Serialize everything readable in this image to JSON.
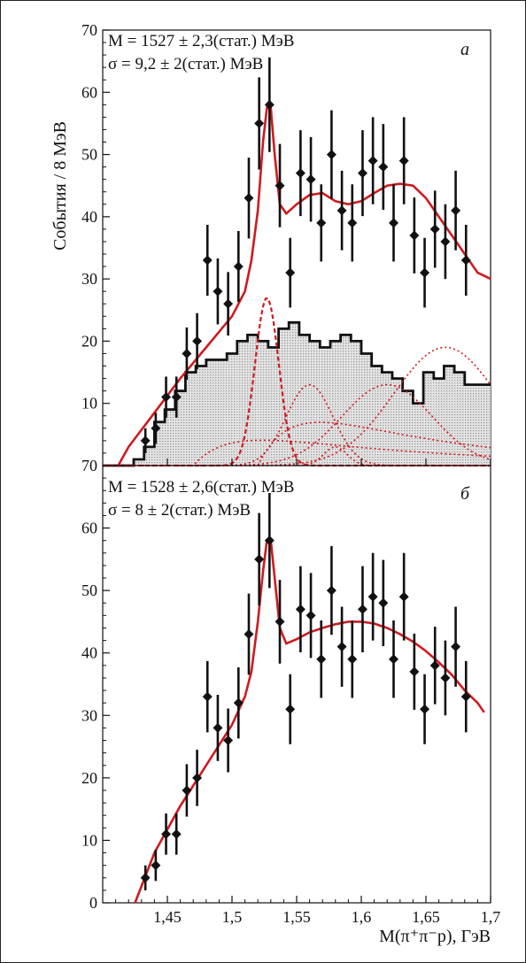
{
  "figure": {
    "ylabel": "События / 8 МэВ",
    "xlabel": "M(π⁺π⁻p), ГэВ",
    "x_ticks": [
      "1,45",
      "1,5",
      "1,55",
      "1,6",
      "1,65",
      "1,7"
    ]
  },
  "colors": {
    "fit": "#d0191f",
    "points": "#111111",
    "hist_fill": "#d6d6d6"
  },
  "chart_data": [
    {
      "type": "scatter",
      "panel": "а",
      "annot1": "M = 1527 ± 2,3(стат.) МэВ",
      "annot2": "σ = 9,2 ± 2(стат.) МэВ",
      "xlim": [
        1.4,
        1.7
      ],
      "ylim": [
        0,
        70
      ],
      "y_ticks": [
        "10",
        "20",
        "30",
        "40",
        "50",
        "60",
        "70"
      ],
      "points": [
        {
          "x": 1.433,
          "y": 4,
          "err": 2
        },
        {
          "x": 1.441,
          "y": 6,
          "err": 2.5
        },
        {
          "x": 1.449,
          "y": 11,
          "err": 3.3
        },
        {
          "x": 1.457,
          "y": 11,
          "err": 3.3
        },
        {
          "x": 1.465,
          "y": 18,
          "err": 4.2
        },
        {
          "x": 1.473,
          "y": 20,
          "err": 4.5
        },
        {
          "x": 1.481,
          "y": 33,
          "err": 5.7
        },
        {
          "x": 1.489,
          "y": 28,
          "err": 5.3
        },
        {
          "x": 1.497,
          "y": 26,
          "err": 5.1
        },
        {
          "x": 1.505,
          "y": 32,
          "err": 5.7
        },
        {
          "x": 1.513,
          "y": 43,
          "err": 6.5
        },
        {
          "x": 1.521,
          "y": 55,
          "err": 7.4
        },
        {
          "x": 1.529,
          "y": 58,
          "err": 7.6
        },
        {
          "x": 1.537,
          "y": 45,
          "err": 6.7
        },
        {
          "x": 1.545,
          "y": 31,
          "err": 5.6
        },
        {
          "x": 1.553,
          "y": 47,
          "err": 6.9
        },
        {
          "x": 1.561,
          "y": 46,
          "err": 6.8
        },
        {
          "x": 1.569,
          "y": 39,
          "err": 6.2
        },
        {
          "x": 1.577,
          "y": 50,
          "err": 7.1
        },
        {
          "x": 1.585,
          "y": 41,
          "err": 6.4
        },
        {
          "x": 1.593,
          "y": 39,
          "err": 6.2
        },
        {
          "x": 1.601,
          "y": 47,
          "err": 6.9
        },
        {
          "x": 1.609,
          "y": 49,
          "err": 7.0
        },
        {
          "x": 1.617,
          "y": 48,
          "err": 6.9
        },
        {
          "x": 1.625,
          "y": 39,
          "err": 6.2
        },
        {
          "x": 1.633,
          "y": 49,
          "err": 7.0
        },
        {
          "x": 1.641,
          "y": 37,
          "err": 6.1
        },
        {
          "x": 1.649,
          "y": 31,
          "err": 5.6
        },
        {
          "x": 1.657,
          "y": 38,
          "err": 6.2
        },
        {
          "x": 1.665,
          "y": 36,
          "err": 6.0
        },
        {
          "x": 1.673,
          "y": 41,
          "err": 6.4
        },
        {
          "x": 1.681,
          "y": 33,
          "err": 5.7
        }
      ],
      "fit": [
        [
          1.412,
          0
        ],
        [
          1.42,
          3
        ],
        [
          1.44,
          8.5
        ],
        [
          1.46,
          14
        ],
        [
          1.48,
          19
        ],
        [
          1.5,
          24
        ],
        [
          1.51,
          28
        ],
        [
          1.515,
          33
        ],
        [
          1.52,
          41
        ],
        [
          1.524,
          52
        ],
        [
          1.527,
          57.5
        ],
        [
          1.53,
          57.5
        ],
        [
          1.533,
          50
        ],
        [
          1.537,
          42
        ],
        [
          1.542,
          40.5
        ],
        [
          1.55,
          42
        ],
        [
          1.56,
          43.5
        ],
        [
          1.57,
          43.8
        ],
        [
          1.58,
          42.5
        ],
        [
          1.59,
          42
        ],
        [
          1.6,
          42.5
        ],
        [
          1.61,
          43.8
        ],
        [
          1.62,
          45
        ],
        [
          1.63,
          45.3
        ],
        [
          1.64,
          45
        ],
        [
          1.65,
          43
        ],
        [
          1.66,
          40
        ],
        [
          1.67,
          37
        ],
        [
          1.68,
          34
        ],
        [
          1.69,
          31
        ],
        [
          1.7,
          30
        ]
      ],
      "histogram": [
        {
          "x0": 1.4,
          "x1": 1.424,
          "y": 0
        },
        {
          "x0": 1.424,
          "x1": 1.432,
          "y": 1
        },
        {
          "x0": 1.432,
          "x1": 1.44,
          "y": 3
        },
        {
          "x0": 1.44,
          "x1": 1.448,
          "y": 7
        },
        {
          "x0": 1.448,
          "x1": 1.456,
          "y": 9
        },
        {
          "x0": 1.456,
          "x1": 1.464,
          "y": 12
        },
        {
          "x0": 1.464,
          "x1": 1.472,
          "y": 15
        },
        {
          "x0": 1.472,
          "x1": 1.48,
          "y": 16
        },
        {
          "x0": 1.48,
          "x1": 1.488,
          "y": 17
        },
        {
          "x0": 1.488,
          "x1": 1.496,
          "y": 17
        },
        {
          "x0": 1.496,
          "x1": 1.504,
          "y": 18
        },
        {
          "x0": 1.504,
          "x1": 1.512,
          "y": 20
        },
        {
          "x0": 1.512,
          "x1": 1.52,
          "y": 21
        },
        {
          "x0": 1.52,
          "x1": 1.528,
          "y": 20
        },
        {
          "x0": 1.528,
          "x1": 1.536,
          "y": 19
        },
        {
          "x0": 1.536,
          "x1": 1.544,
          "y": 22
        },
        {
          "x0": 1.544,
          "x1": 1.552,
          "y": 23
        },
        {
          "x0": 1.552,
          "x1": 1.56,
          "y": 21
        },
        {
          "x0": 1.56,
          "x1": 1.568,
          "y": 20
        },
        {
          "x0": 1.568,
          "x1": 1.576,
          "y": 19
        },
        {
          "x0": 1.576,
          "x1": 1.584,
          "y": 20
        },
        {
          "x0": 1.584,
          "x1": 1.592,
          "y": 21
        },
        {
          "x0": 1.592,
          "x1": 1.6,
          "y": 20
        },
        {
          "x0": 1.6,
          "x1": 1.608,
          "y": 18
        },
        {
          "x0": 1.608,
          "x1": 1.616,
          "y": 16
        },
        {
          "x0": 1.616,
          "x1": 1.624,
          "y": 15
        },
        {
          "x0": 1.624,
          "x1": 1.632,
          "y": 14
        },
        {
          "x0": 1.632,
          "x1": 1.64,
          "y": 12
        },
        {
          "x0": 1.64,
          "x1": 1.648,
          "y": 10
        },
        {
          "x0": 1.648,
          "x1": 1.656,
          "y": 15
        },
        {
          "x0": 1.656,
          "x1": 1.664,
          "y": 14
        },
        {
          "x0": 1.664,
          "x1": 1.672,
          "y": 16
        },
        {
          "x0": 1.672,
          "x1": 1.68,
          "y": 15
        },
        {
          "x0": 1.68,
          "x1": 1.688,
          "y": 13
        },
        {
          "x0": 1.688,
          "x1": 1.7,
          "y": 13
        }
      ],
      "components": [
        {
          "type": "gauss",
          "mean": 1.527,
          "sigma": 0.0092,
          "amp": 27
        },
        {
          "type": "gauss",
          "mean": 1.56,
          "sigma": 0.018,
          "amp": 13
        },
        {
          "type": "gauss",
          "mean": 1.58,
          "sigma": 0.009,
          "amp": 3
        },
        {
          "type": "gauss",
          "mean": 1.62,
          "sigma": 0.035,
          "amp": 13
        },
        {
          "type": "gauss",
          "mean": 1.665,
          "sigma": 0.04,
          "amp": 19
        },
        {
          "type": "decay",
          "x0": 1.47,
          "amp": 7,
          "scale": 0.15
        },
        {
          "type": "decay",
          "x0": 1.52,
          "amp": 13,
          "scale": 0.12
        }
      ]
    },
    {
      "type": "scatter",
      "panel": "б",
      "annot1": "M = 1528 ± 2,6(стат.) МэВ",
      "annot2": "σ = 8 ± 2(стат.) МэВ",
      "xlim": [
        1.4,
        1.7
      ],
      "ylim": [
        0,
        70
      ],
      "y_ticks": [
        "0",
        "10",
        "20",
        "30",
        "40",
        "50",
        "60",
        "70"
      ],
      "points": [
        {
          "x": 1.433,
          "y": 4,
          "err": 2
        },
        {
          "x": 1.441,
          "y": 6,
          "err": 2.5
        },
        {
          "x": 1.449,
          "y": 11,
          "err": 3.3
        },
        {
          "x": 1.457,
          "y": 11,
          "err": 3.3
        },
        {
          "x": 1.465,
          "y": 18,
          "err": 4.2
        },
        {
          "x": 1.473,
          "y": 20,
          "err": 4.5
        },
        {
          "x": 1.481,
          "y": 33,
          "err": 5.7
        },
        {
          "x": 1.489,
          "y": 28,
          "err": 5.3
        },
        {
          "x": 1.497,
          "y": 26,
          "err": 5.1
        },
        {
          "x": 1.505,
          "y": 32,
          "err": 5.7
        },
        {
          "x": 1.513,
          "y": 43,
          "err": 6.5
        },
        {
          "x": 1.521,
          "y": 55,
          "err": 7.4
        },
        {
          "x": 1.529,
          "y": 58,
          "err": 7.6
        },
        {
          "x": 1.537,
          "y": 45,
          "err": 6.7
        },
        {
          "x": 1.545,
          "y": 31,
          "err": 5.6
        },
        {
          "x": 1.553,
          "y": 47,
          "err": 6.9
        },
        {
          "x": 1.561,
          "y": 46,
          "err": 6.8
        },
        {
          "x": 1.569,
          "y": 39,
          "err": 6.2
        },
        {
          "x": 1.577,
          "y": 50,
          "err": 7.1
        },
        {
          "x": 1.585,
          "y": 41,
          "err": 6.4
        },
        {
          "x": 1.593,
          "y": 39,
          "err": 6.2
        },
        {
          "x": 1.601,
          "y": 47,
          "err": 6.9
        },
        {
          "x": 1.609,
          "y": 49,
          "err": 7.0
        },
        {
          "x": 1.617,
          "y": 48,
          "err": 6.9
        },
        {
          "x": 1.625,
          "y": 39,
          "err": 6.2
        },
        {
          "x": 1.633,
          "y": 49,
          "err": 7.0
        },
        {
          "x": 1.641,
          "y": 37,
          "err": 6.1
        },
        {
          "x": 1.649,
          "y": 31,
          "err": 5.6
        },
        {
          "x": 1.657,
          "y": 38,
          "err": 6.2
        },
        {
          "x": 1.665,
          "y": 36,
          "err": 6.0
        },
        {
          "x": 1.673,
          "y": 41,
          "err": 6.4
        },
        {
          "x": 1.681,
          "y": 33,
          "err": 5.7
        }
      ],
      "fit": [
        [
          1.425,
          0
        ],
        [
          1.44,
          8
        ],
        [
          1.46,
          15.5
        ],
        [
          1.48,
          22
        ],
        [
          1.5,
          28.5
        ],
        [
          1.51,
          33
        ],
        [
          1.515,
          37
        ],
        [
          1.52,
          45
        ],
        [
          1.524,
          53
        ],
        [
          1.527,
          58
        ],
        [
          1.53,
          58
        ],
        [
          1.533,
          52
        ],
        [
          1.537,
          44
        ],
        [
          1.542,
          41.5
        ],
        [
          1.55,
          42.2
        ],
        [
          1.56,
          43.3
        ],
        [
          1.57,
          44
        ],
        [
          1.58,
          44.6
        ],
        [
          1.59,
          45
        ],
        [
          1.6,
          45
        ],
        [
          1.61,
          44.7
        ],
        [
          1.62,
          44
        ],
        [
          1.63,
          43
        ],
        [
          1.64,
          41.8
        ],
        [
          1.65,
          40.3
        ],
        [
          1.66,
          38.5
        ],
        [
          1.67,
          36.5
        ],
        [
          1.68,
          34
        ],
        [
          1.69,
          32
        ],
        [
          1.695,
          30.5
        ]
      ]
    }
  ]
}
